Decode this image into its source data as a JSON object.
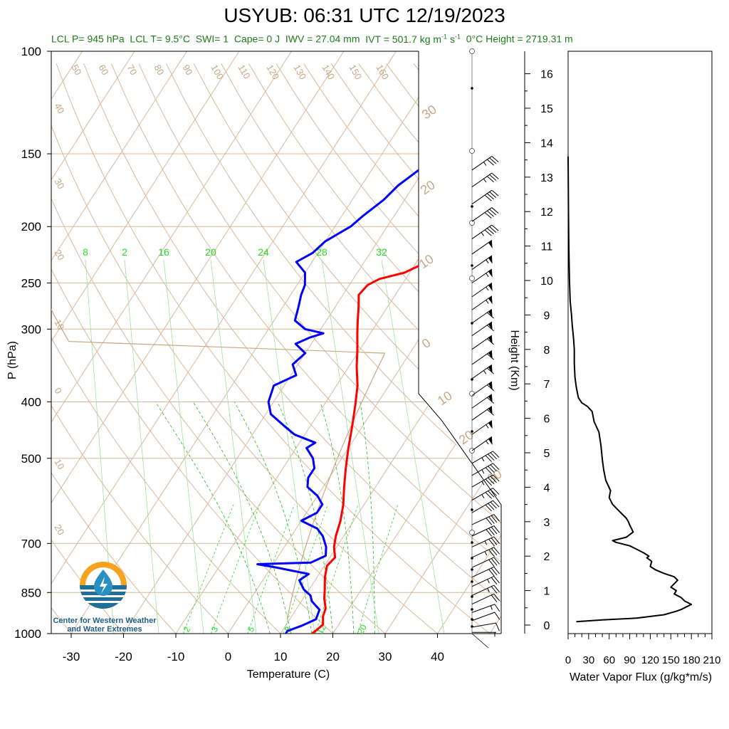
{
  "title": "USYUB: 06:31 UTC 12/19/2023",
  "stats": {
    "lcl_p": "LCL P= 945 hPa",
    "lcl_t": "LCL T= 9.5°C",
    "swi": "SWI= 1",
    "cape": "Cape= 0 J",
    "iwv": "IWV = 27.04 mm",
    "ivt_value": "IVT = 501.7 kg m",
    "ivt_unit_a": "-1",
    "ivt_unit_b": " s",
    "ivt_unit_c": "-1",
    "zero_height": "0°C Height = 2719.31 m"
  },
  "logo": {
    "line1": "Center for Western Weather",
    "line2": "and Water Extremes"
  },
  "colors": {
    "temperature": "#ff0000",
    "dewpoint": "#0000ff",
    "isotherm": "#d9b89a",
    "dry_adiabat": "#d9b89a",
    "moist_adiabat": "#22bb22",
    "mixing_ratio": "#22dd22",
    "flux": "#000000",
    "label_tan": "#c8a882",
    "label_green": "#22dd22"
  },
  "chart_data": [
    {
      "type": "line",
      "title": "USYUB: 06:31 UTC 12/19/2023",
      "xlabel": "Temperature (C)",
      "ylabel": "P (hPa)",
      "y_scale": "log",
      "xlim": [
        -34,
        52
      ],
      "ylim": [
        1000,
        100
      ],
      "x_ticks": [
        "-30",
        "-20",
        "-10",
        "0",
        "10",
        "20",
        "30",
        "40"
      ],
      "y_ticks": [
        "100",
        "150",
        "200",
        "250",
        "300",
        "400",
        "500",
        "700",
        "850",
        "1000"
      ],
      "series": [
        {
          "color": "#ff0000",
          "points": [
            [
              16,
              1000
            ],
            [
              16.5,
              985
            ],
            [
              17,
              965
            ],
            [
              16,
              935
            ],
            [
              15.5,
              905
            ],
            [
              14,
              870
            ],
            [
              13,
              840
            ],
            [
              11.5,
              800
            ],
            [
              10.5,
              765
            ],
            [
              11,
              740
            ],
            [
              9.5,
              710
            ],
            [
              8.5,
              680
            ],
            [
              7.5,
              640
            ],
            [
              6,
              600
            ],
            [
              4,
              560
            ],
            [
              2,
              520
            ],
            [
              0,
              480
            ],
            [
              -2,
              440
            ],
            [
              -4,
              405
            ],
            [
              -6,
              375
            ],
            [
              -8.5,
              348
            ],
            [
              -10.5,
              325
            ],
            [
              -12.5,
              305
            ],
            [
              -14,
              290
            ],
            [
              -15.5,
              275
            ],
            [
              -17,
              262
            ],
            [
              -16.5,
              252
            ],
            [
              -15,
              246
            ],
            [
              -11,
              240
            ],
            [
              -8,
              230
            ],
            [
              -5,
              215
            ],
            [
              -4,
              203
            ],
            [
              -2,
              196
            ],
            [
              -1,
              188
            ],
            [
              -1.3,
              176
            ],
            [
              -1,
              165
            ],
            [
              0,
              158
            ],
            [
              0,
              152
            ],
            [
              0,
              150
            ]
          ]
        },
        {
          "color": "#0000ff",
          "points": [
            [
              11,
              1000
            ],
            [
              11,
              990
            ],
            [
              13,
              970
            ],
            [
              15,
              945
            ],
            [
              14.5,
              910
            ],
            [
              12,
              880
            ],
            [
              11,
              860
            ],
            [
              9,
              840
            ],
            [
              7,
              810
            ],
            [
              8,
              790
            ],
            [
              1,
              770
            ],
            [
              -3,
              760
            ],
            [
              7,
              755
            ],
            [
              9,
              735
            ],
            [
              8,
              710
            ],
            [
              6,
              680
            ],
            [
              4,
              660
            ],
            [
              0,
              640
            ],
            [
              2,
              620
            ],
            [
              2,
              600
            ],
            [
              0,
              580
            ],
            [
              -3,
              560
            ],
            [
              -4,
              540
            ],
            [
              -4,
              520
            ],
            [
              -5.5,
              500
            ],
            [
              -8,
              480
            ],
            [
              -7,
              470
            ],
            [
              -12,
              455
            ],
            [
              -15,
              440
            ],
            [
              -19,
              420
            ],
            [
              -21,
              400
            ],
            [
              -22,
              375
            ],
            [
              -19,
              360
            ],
            [
              -21,
              345
            ],
            [
              -20,
              330
            ],
            [
              -23,
              318
            ],
            [
              -21,
              310
            ],
            [
              -19,
              305
            ],
            [
              -23,
              300
            ],
            [
              -26,
              290
            ],
            [
              -27,
              275
            ],
            [
              -28,
              262
            ],
            [
              -28.5,
              252
            ],
            [
              -30,
              240
            ],
            [
              -33,
              230
            ],
            [
              -31,
              222
            ],
            [
              -30,
              212
            ],
            [
              -27,
              200
            ],
            [
              -26,
              192
            ],
            [
              -24,
              180
            ],
            [
              -23,
              170
            ],
            [
              -21,
              160
            ],
            [
              -20,
              152
            ],
            [
              -20,
              150
            ]
          ]
        }
      ]
    },
    {
      "type": "barbs",
      "ylabel": "Height (Km)",
      "y_ticks": [
        "0",
        "1",
        "2",
        "3",
        "4",
        "5",
        "6",
        "7",
        "8",
        "9",
        "10",
        "11",
        "12",
        "13",
        "14",
        "15",
        "16"
      ],
      "barbs": [
        {
          "p": 995,
          "speed_kt": 5,
          "dir": 270
        },
        {
          "p": 975,
          "speed_kt": 10,
          "dir": 260
        },
        {
          "p": 950,
          "speed_kt": 10,
          "dir": 250
        },
        {
          "p": 920,
          "speed_kt": 15,
          "dir": 250
        },
        {
          "p": 890,
          "speed_kt": 20,
          "dir": 245
        },
        {
          "p": 860,
          "speed_kt": 25,
          "dir": 245
        },
        {
          "p": 830,
          "speed_kt": 25,
          "dir": 245
        },
        {
          "p": 800,
          "speed_kt": 30,
          "dir": 245
        },
        {
          "p": 770,
          "speed_kt": 30,
          "dir": 245
        },
        {
          "p": 740,
          "speed_kt": 35,
          "dir": 245
        },
        {
          "p": 710,
          "speed_kt": 35,
          "dir": 245
        },
        {
          "p": 680,
          "speed_kt": 40,
          "dir": 245
        },
        {
          "p": 650,
          "speed_kt": 40,
          "dir": 245
        },
        {
          "p": 620,
          "speed_kt": 40,
          "dir": 240
        },
        {
          "p": 590,
          "speed_kt": 45,
          "dir": 240
        },
        {
          "p": 560,
          "speed_kt": 45,
          "dir": 240
        },
        {
          "p": 535,
          "speed_kt": 45,
          "dir": 240
        },
        {
          "p": 510,
          "speed_kt": 45,
          "dir": 240
        },
        {
          "p": 485,
          "speed_kt": 55,
          "dir": 235
        },
        {
          "p": 455,
          "speed_kt": 55,
          "dir": 235
        },
        {
          "p": 430,
          "speed_kt": 60,
          "dir": 235
        },
        {
          "p": 410,
          "speed_kt": 60,
          "dir": 235
        },
        {
          "p": 390,
          "speed_kt": 60,
          "dir": 235
        },
        {
          "p": 365,
          "speed_kt": 65,
          "dir": 235
        },
        {
          "p": 345,
          "speed_kt": 60,
          "dir": 235
        },
        {
          "p": 325,
          "speed_kt": 60,
          "dir": 235
        },
        {
          "p": 308,
          "speed_kt": 60,
          "dir": 235
        },
        {
          "p": 293,
          "speed_kt": 60,
          "dir": 235
        },
        {
          "p": 278,
          "speed_kt": 55,
          "dir": 235
        },
        {
          "p": 264,
          "speed_kt": 55,
          "dir": 235
        },
        {
          "p": 250,
          "speed_kt": 55,
          "dir": 235
        },
        {
          "p": 237,
          "speed_kt": 55,
          "dir": 235
        },
        {
          "p": 223,
          "speed_kt": 50,
          "dir": 235
        },
        {
          "p": 210,
          "speed_kt": 45,
          "dir": 235
        },
        {
          "p": 196,
          "speed_kt": 40,
          "dir": 235
        },
        {
          "p": 183,
          "speed_kt": 40,
          "dir": 235
        },
        {
          "p": 171,
          "speed_kt": 35,
          "dir": 235
        },
        {
          "p": 160,
          "speed_kt": 35,
          "dir": 235
        }
      ]
    },
    {
      "type": "line",
      "xlabel": "Water Vapor Flux (g/kg*m/s)",
      "xlim": [
        0,
        210
      ],
      "ylim": [
        0,
        16.5
      ],
      "x_ticks": [
        "0",
        "30",
        "60",
        "90",
        "120",
        "150",
        "180",
        "210"
      ],
      "series": [
        {
          "color": "#000000",
          "points": [
            [
              12,
              0.1
            ],
            [
              50,
              0.15
            ],
            [
              100,
              0.2
            ],
            [
              140,
              0.3
            ],
            [
              158,
              0.4
            ],
            [
              165,
              0.45
            ],
            [
              180,
              0.6
            ],
            [
              170,
              0.7
            ],
            [
              165,
              0.8
            ],
            [
              155,
              0.9
            ],
            [
              158,
              1.0
            ],
            [
              150,
              1.1
            ],
            [
              160,
              1.3
            ],
            [
              155,
              1.4
            ],
            [
              140,
              1.5
            ],
            [
              128,
              1.6
            ],
            [
              120,
              1.7
            ],
            [
              122,
              1.85
            ],
            [
              115,
              1.95
            ],
            [
              118,
              2.0
            ],
            [
              110,
              2.1
            ],
            [
              100,
              2.2
            ],
            [
              90,
              2.3
            ],
            [
              70,
              2.4
            ],
            [
              65,
              2.45
            ],
            [
              85,
              2.55
            ],
            [
              95,
              2.7
            ],
            [
              90,
              2.9
            ],
            [
              88,
              3.0
            ],
            [
              85,
              3.1
            ],
            [
              75,
              3.3
            ],
            [
              65,
              3.5
            ],
            [
              60,
              3.7
            ],
            [
              62,
              3.9
            ],
            [
              55,
              4.2
            ],
            [
              52,
              4.5
            ],
            [
              50,
              4.8
            ],
            [
              48,
              5.2
            ],
            [
              45,
              5.6
            ],
            [
              38,
              5.9
            ],
            [
              35,
              6.2
            ],
            [
              28,
              6.35
            ],
            [
              20,
              6.45
            ],
            [
              15,
              6.6
            ],
            [
              12,
              6.9
            ],
            [
              10,
              7.2
            ],
            [
              9,
              7.6
            ],
            [
              9,
              8.0
            ],
            [
              8,
              8.3
            ],
            [
              6,
              8.7
            ],
            [
              5,
              9.0
            ],
            [
              3,
              9.4
            ],
            [
              2,
              10
            ],
            [
              1,
              11
            ],
            [
              0.5,
              12
            ],
            [
              0.2,
              13
            ],
            [
              0,
              13.6
            ]
          ]
        }
      ]
    }
  ],
  "labels": {
    "mixing_ratio_top": [
      "8",
      "2",
      "16",
      "20",
      "24",
      "28",
      "32"
    ],
    "mixing_ratio_bottom": [
      "2",
      "3",
      "5",
      "8",
      "12",
      "20"
    ],
    "isotherm_top": [
      "50",
      "60",
      "70",
      "80",
      "90",
      "100",
      "110",
      "120",
      "130",
      "140",
      "150",
      "160"
    ],
    "isotherm_left": [
      "40",
      "30",
      "20",
      "10",
      "0",
      "10",
      "20"
    ],
    "dry_adiabat_right": [
      "30",
      "20",
      "10",
      "0",
      "10",
      "20",
      "30"
    ]
  }
}
